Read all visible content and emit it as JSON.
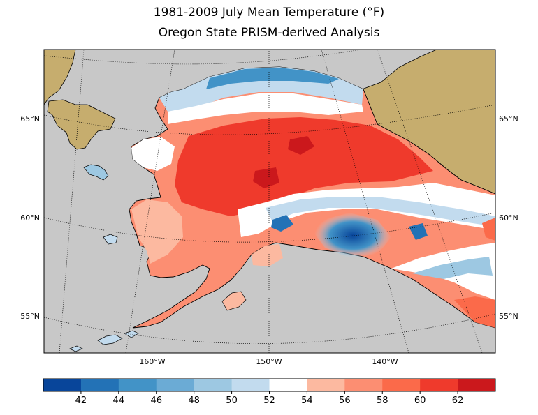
{
  "title_line1": "1981-2009 July Mean Temperature (°F)",
  "title_line2": "Oregon State PRISM-derived Analysis",
  "map": {
    "ocean_color": "#c8c8c8",
    "land_outside_color": "#c6ad6e",
    "graticule": {
      "lat_labels": [
        "65°N",
        "60°N",
        "55°N"
      ],
      "lon_labels": [
        "160°W",
        "150°W",
        "140°W"
      ]
    }
  },
  "colorbar": {
    "colors": [
      "#08459a",
      "#2372b6",
      "#4293c7",
      "#6babd5",
      "#9dc8e2",
      "#c2dbee",
      "#ffffff",
      "#fcb9a0",
      "#fc8e72",
      "#fb6a4a",
      "#ef3a2c",
      "#cb181c"
    ],
    "tick_labels": [
      "42",
      "44",
      "46",
      "48",
      "50",
      "52",
      "54",
      "56",
      "58",
      "60",
      "62"
    ]
  }
}
